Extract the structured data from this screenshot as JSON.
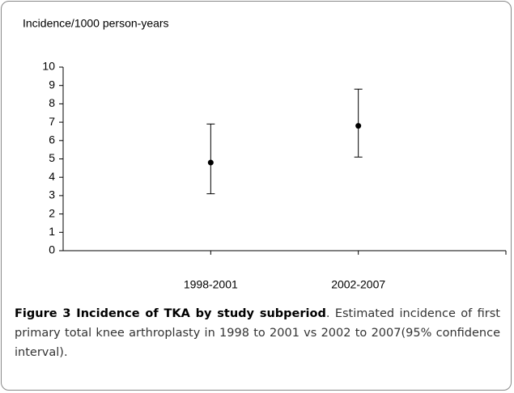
{
  "chart_data": {
    "type": "errorbar",
    "y_label": "Incidence/1000 person-years",
    "categories": [
      "1998-2001",
      "2002-2007"
    ],
    "series": [
      {
        "color": "#000000",
        "values": [
          4.8,
          6.8
        ],
        "ci_low": [
          3.1,
          5.1
        ],
        "ci_high": [
          6.9,
          8.8
        ]
      }
    ],
    "ylim": [
      0,
      10
    ],
    "yticks": [
      0,
      1,
      2,
      3,
      4,
      5,
      6,
      7,
      8,
      9,
      10
    ],
    "grid": false
  },
  "caption": {
    "label": "Figure 3 Incidence of TKA by study subperiod",
    "text": ". Estimated incidence of first primary total knee arthroplasty in 1998 to 2001 vs 2002 to 2007(95% confidence interval)."
  }
}
